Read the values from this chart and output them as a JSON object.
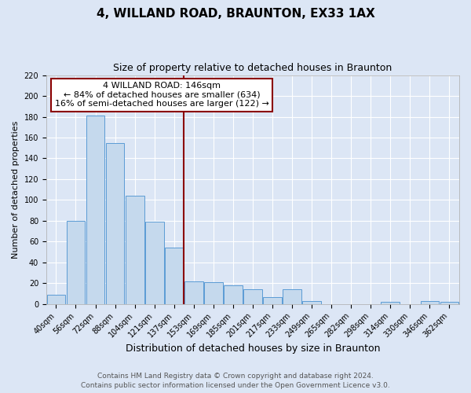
{
  "title": "4, WILLAND ROAD, BRAUNTON, EX33 1AX",
  "subtitle": "Size of property relative to detached houses in Braunton",
  "xlabel": "Distribution of detached houses by size in Braunton",
  "ylabel": "Number of detached properties",
  "bar_labels": [
    "40sqm",
    "56sqm",
    "72sqm",
    "88sqm",
    "104sqm",
    "121sqm",
    "137sqm",
    "153sqm",
    "169sqm",
    "185sqm",
    "201sqm",
    "217sqm",
    "233sqm",
    "249sqm",
    "265sqm",
    "282sqm",
    "298sqm",
    "314sqm",
    "330sqm",
    "346sqm",
    "362sqm"
  ],
  "bar_values": [
    9,
    80,
    181,
    155,
    104,
    79,
    54,
    22,
    21,
    18,
    14,
    7,
    14,
    3,
    0,
    0,
    0,
    2,
    0,
    3,
    2
  ],
  "bar_color": "#c5d9ed",
  "bar_edge_color": "#5b9bd5",
  "background_color": "#dce6f5",
  "ylim": [
    0,
    220
  ],
  "yticks": [
    0,
    20,
    40,
    60,
    80,
    100,
    120,
    140,
    160,
    180,
    200,
    220
  ],
  "annotation_title": "4 WILLAND ROAD: 146sqm",
  "annotation_line1": "← 84% of detached houses are smaller (634)",
  "annotation_line2": "16% of semi-detached houses are larger (122) →",
  "annotation_box_color": "white",
  "annotation_border_color": "#8b0000",
  "marker_line_color": "#8b0000",
  "footer1": "Contains HM Land Registry data © Crown copyright and database right 2024.",
  "footer2": "Contains public sector information licensed under the Open Government Licence v3.0.",
  "title_fontsize": 11,
  "subtitle_fontsize": 9,
  "xlabel_fontsize": 9,
  "ylabel_fontsize": 8,
  "tick_fontsize": 7,
  "annotation_fontsize": 8,
  "footer_fontsize": 6.5
}
